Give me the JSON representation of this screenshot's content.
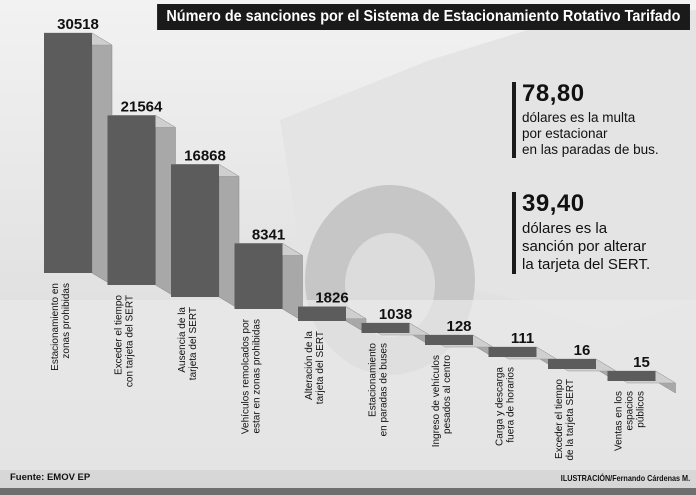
{
  "title": "Número de sanciones por el Sistema de Estacionamiento Rotativo Tarifado",
  "callouts": [
    {
      "value": "78,80",
      "text": [
        "dólares es la multa",
        "por estacionar",
        "en las paradas de bus."
      ]
    },
    {
      "value": "39,40",
      "text": [
        "dólares es la",
        "sanción por alterar",
        "la tarjeta del SERT."
      ]
    }
  ],
  "footer": {
    "source": "Fuente: EMOV EP",
    "credit": "ILUSTRACIÓN/Fernando Cárdenas M."
  },
  "colors": {
    "bar_front": "#5c5c5c",
    "bar_side": "#a8a8a8",
    "bar_top": "#cfcfcf",
    "title_bg": "#1a1a1a"
  },
  "chart_data": {
    "type": "bar",
    "title": "Número de sanciones por el Sistema de Estacionamiento Rotativo Tarifado",
    "categories": [
      [
        "Estacionamiento en",
        "zonas prohibidas"
      ],
      [
        "Exceder el tiempo",
        "con tarjeta del SERT"
      ],
      [
        "Ausencia de la",
        "tarjeta del SERT"
      ],
      [
        "Vehículos remolcados por",
        "estar en zonas prohibidas"
      ],
      [
        "Alteración de la",
        "tarjeta del SERT"
      ],
      [
        "Estacionamiento",
        "en paradas de buses"
      ],
      [
        "Ingreso de vehículos",
        "pesados al centro"
      ],
      [
        "Carga y descarga",
        "fuera de horarios"
      ],
      [
        "Exceder el tiempo",
        "de la tarjeta SERT"
      ],
      [
        "Ventas en los",
        "espacios",
        "públicos"
      ]
    ],
    "values": [
      30518,
      21564,
      16868,
      8341,
      1826,
      1038,
      128,
      111,
      16,
      15
    ],
    "value_labels": [
      "30518",
      "21564",
      "16868",
      "8341",
      "1826",
      "1038",
      "128",
      "111",
      "16",
      "15"
    ]
  }
}
